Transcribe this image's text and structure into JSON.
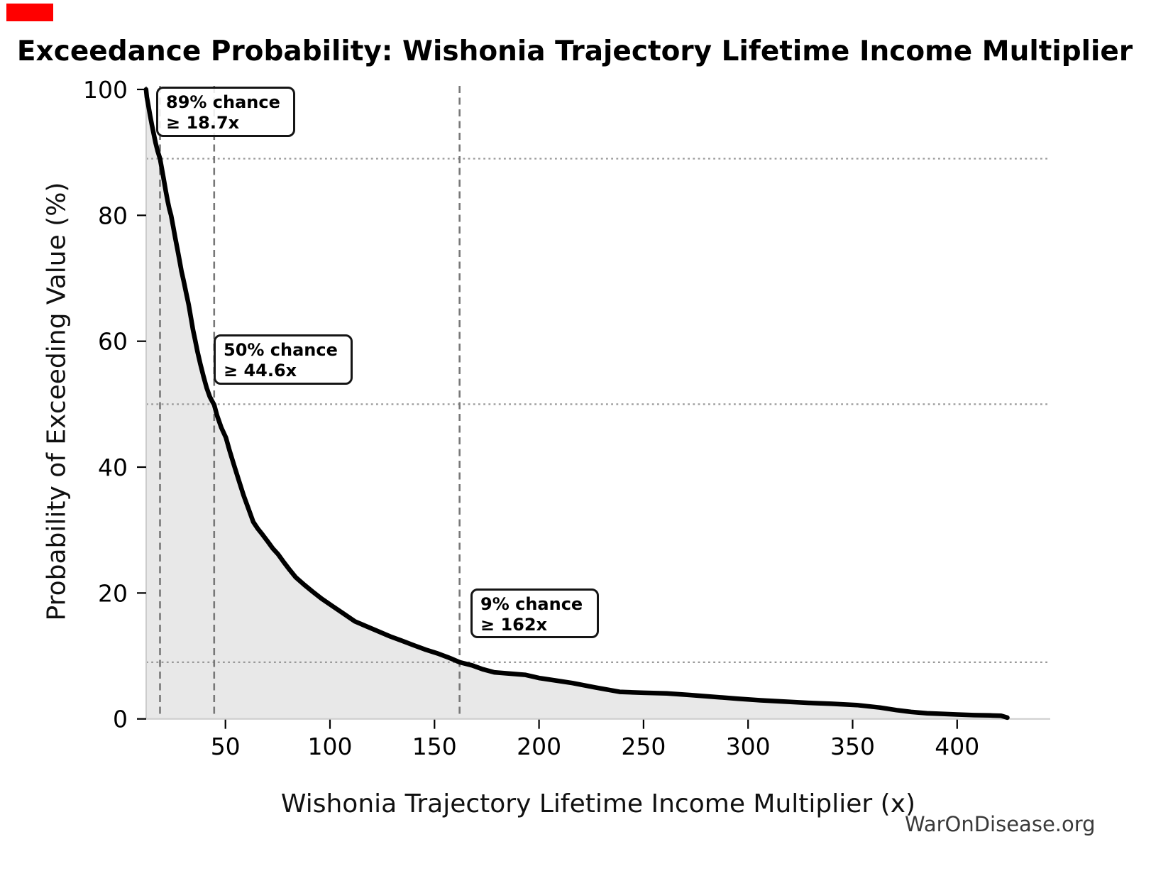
{
  "page": {
    "background": "#ffffff",
    "marker_color": "#ff0000"
  },
  "title": {
    "text": "Exceedance Probability: Wishonia Trajectory Lifetime Income Multiplier"
  },
  "watermark": {
    "text": "WarOnDisease.org"
  },
  "chart_data": {
    "type": "line",
    "title": "Exceedance Probability: Wishonia Trajectory Lifetime Income Multiplier",
    "xlabel": "Wishonia Trajectory Lifetime Income Multiplier (x)",
    "ylabel": "Probability of Exceeding Value (%)",
    "xlim": [
      12,
      445
    ],
    "ylim": [
      0,
      100
    ],
    "x_ticks": [
      50,
      100,
      150,
      200,
      250,
      300,
      350,
      400
    ],
    "y_ticks": [
      0,
      20,
      40,
      60,
      80,
      100
    ],
    "grid": "dotted horizontal reference lines at annotated probabilities only",
    "h_reference_lines_pct": [
      89,
      50,
      9
    ],
    "v_guide_lines_x": [
      18.7,
      44.6,
      162
    ],
    "legend": "none",
    "annotations": [
      {
        "label_line1": "89% chance",
        "label_line2": "≥ 18.7x",
        "probability_pct": 89,
        "value_x": 18.7
      },
      {
        "label_line1": "50% chance",
        "label_line2": "≥ 44.6x",
        "probability_pct": 50,
        "value_x": 44.6
      },
      {
        "label_line1": "9% chance",
        "label_line2": "≥ 162x",
        "probability_pct": 9,
        "value_x": 162
      }
    ],
    "series": [
      {
        "name": "exceedance-curve",
        "style": "thick black line with light gray area fill to zero",
        "points": [
          [
            12,
            100
          ],
          [
            12.4,
            98.8
          ],
          [
            13.2,
            97.3
          ],
          [
            14,
            95.8
          ],
          [
            14.8,
            94.4
          ],
          [
            15.7,
            92.9
          ],
          [
            16.6,
            91.5
          ],
          [
            17.6,
            90.2
          ],
          [
            18.7,
            89
          ],
          [
            19.7,
            87.2
          ],
          [
            20.6,
            85.5
          ],
          [
            21.5,
            83.8
          ],
          [
            22.4,
            82.2
          ],
          [
            23.2,
            81
          ],
          [
            24,
            80
          ],
          [
            25,
            78.2
          ],
          [
            26,
            76.4
          ],
          [
            27,
            74.7
          ],
          [
            28,
            72.9
          ],
          [
            29,
            71.1
          ],
          [
            30,
            69.6
          ],
          [
            31.2,
            67.7
          ],
          [
            32.4,
            65.8
          ],
          [
            33.6,
            63.5
          ],
          [
            34.5,
            61.8
          ],
          [
            35.5,
            60.2
          ],
          [
            36.6,
            58.4
          ],
          [
            38,
            56.4
          ],
          [
            39.5,
            54.4
          ],
          [
            41,
            52.6
          ],
          [
            42.5,
            51.2
          ],
          [
            43.6,
            50.5
          ],
          [
            44.6,
            49.9
          ],
          [
            46,
            48.2
          ],
          [
            48,
            46.3
          ],
          [
            50.2,
            44.7
          ],
          [
            52,
            42.6
          ],
          [
            54.2,
            40.2
          ],
          [
            56.5,
            37.8
          ],
          [
            58.7,
            35.5
          ],
          [
            61,
            33.4
          ],
          [
            63.3,
            31.3
          ],
          [
            65.5,
            30.2
          ],
          [
            67.7,
            29.3
          ],
          [
            70.2,
            28.2
          ],
          [
            72.6,
            27.1
          ],
          [
            75.1,
            26.2
          ],
          [
            77.9,
            24.9
          ],
          [
            80.7,
            23.7
          ],
          [
            83.6,
            22.5
          ],
          [
            87.7,
            21.3
          ],
          [
            91.8,
            20.2
          ],
          [
            96,
            19.1
          ],
          [
            101.3,
            17.9
          ],
          [
            106.6,
            16.7
          ],
          [
            111.9,
            15.5
          ],
          [
            117.5,
            14.7
          ],
          [
            123.1,
            13.9
          ],
          [
            128.8,
            13.1
          ],
          [
            134.5,
            12.4
          ],
          [
            140.1,
            11.7
          ],
          [
            145.8,
            11
          ],
          [
            151.5,
            10.4
          ],
          [
            157.1,
            9.7
          ],
          [
            162,
            9
          ],
          [
            168,
            8.5
          ],
          [
            173,
            7.9
          ],
          [
            178.6,
            7.4
          ],
          [
            186,
            7.2
          ],
          [
            193.3,
            7
          ],
          [
            200,
            6.5
          ],
          [
            208,
            6.1
          ],
          [
            216,
            5.7
          ],
          [
            227,
            5
          ],
          [
            238.6,
            4.3
          ],
          [
            250,
            4.15
          ],
          [
            261,
            4.05
          ],
          [
            272,
            3.8
          ],
          [
            284,
            3.5
          ],
          [
            295,
            3.2
          ],
          [
            306,
            2.95
          ],
          [
            317,
            2.75
          ],
          [
            329,
            2.55
          ],
          [
            340,
            2.4
          ],
          [
            352,
            2.2
          ],
          [
            363,
            1.8
          ],
          [
            371,
            1.4
          ],
          [
            378,
            1.1
          ],
          [
            385.6,
            0.9
          ],
          [
            393,
            0.8
          ],
          [
            400,
            0.7
          ],
          [
            408,
            0.6
          ],
          [
            416,
            0.55
          ],
          [
            421,
            0.5
          ],
          [
            424,
            0.2
          ]
        ]
      }
    ],
    "colors": {
      "curve": "#000000",
      "area_fill": "#e8e8e8",
      "dashed_guide": "#787878",
      "dotted_reference": "#999999",
      "spine": "#cccccc",
      "tick": "#000000",
      "tick_label": "#000000",
      "watermark_text": "#3a3a3a"
    }
  }
}
